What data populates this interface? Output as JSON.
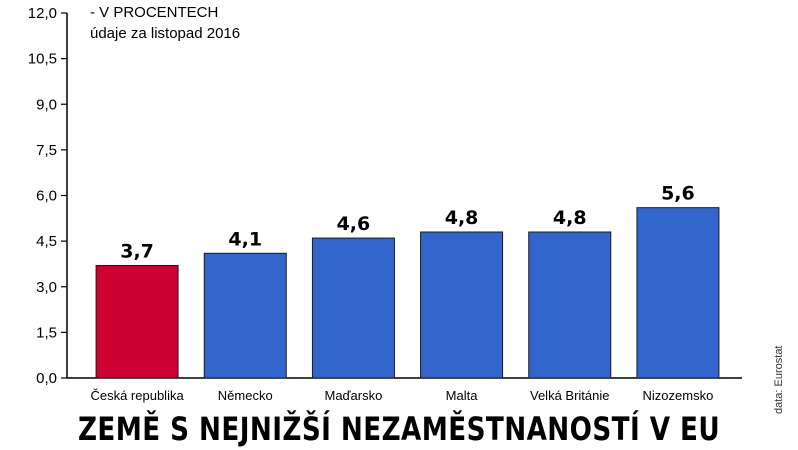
{
  "notes": {
    "units": "- V PROCENTECH",
    "period": "údaje za listopad 2016",
    "source": "data: Eurostat"
  },
  "colors": {
    "highlight": "#cc0033",
    "bars": "#3366cc",
    "axis": "#000000"
  },
  "chart_data": {
    "type": "bar",
    "title": "ZEMĚ S NEJNIŽŠÍ NEZAMĚSTNANOSTÍ V EU",
    "categories": [
      "Česká republika",
      "Německo",
      "Maďarsko",
      "Malta",
      "Velká Británie",
      "Nizozemsko"
    ],
    "values": [
      3.7,
      4.1,
      4.6,
      4.8,
      4.8,
      5.6
    ],
    "value_labels": [
      "3,7",
      "4,1",
      "4,6",
      "4,8",
      "4,8",
      "5,6"
    ],
    "highlight_index": 0,
    "ylim": [
      0,
      12
    ],
    "yticks": [
      0,
      1.5,
      3,
      4.5,
      6,
      7.5,
      9,
      10.5,
      12
    ],
    "ytick_labels": [
      "0,0",
      "1,5",
      "3,0",
      "4,5",
      "6,0",
      "7,5",
      "9,0",
      "10,5",
      "12,0"
    ],
    "grid": false
  }
}
